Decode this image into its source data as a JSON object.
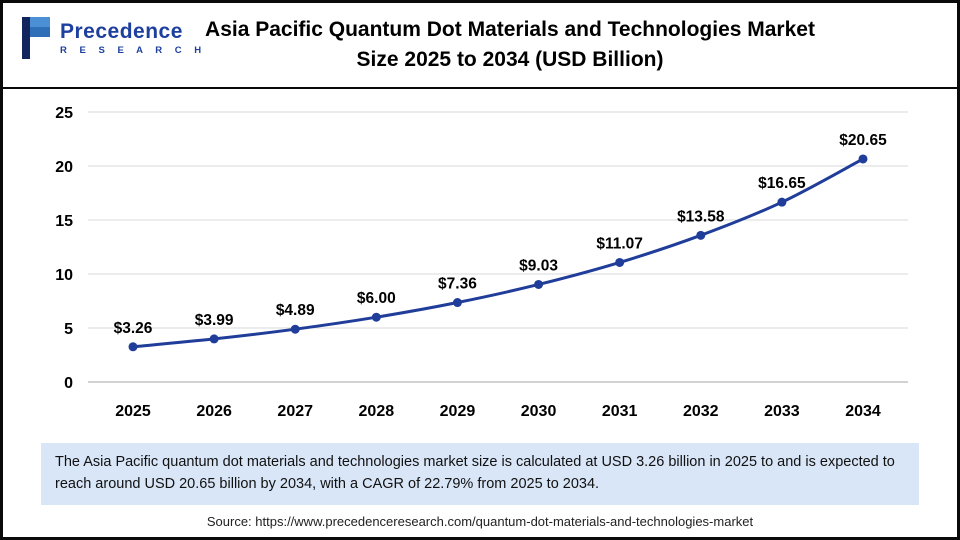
{
  "logo": {
    "name": "Precedence",
    "subtitle": "R E S E A R C H"
  },
  "header": {
    "title_line1": "Asia Pacific Quantum Dot Materials and Technologies Market",
    "title_line2": "Size 2025 to 2034 (USD Billion)"
  },
  "chart_data": {
    "type": "line",
    "title": "Asia Pacific Quantum Dot Materials and Technologies Market Size 2025 to 2034 (USD Billion)",
    "categories": [
      "2025",
      "2026",
      "2027",
      "2028",
      "2029",
      "2030",
      "2031",
      "2032",
      "2033",
      "2034"
    ],
    "values": [
      3.26,
      3.99,
      4.89,
      6.0,
      7.36,
      9.03,
      11.07,
      13.58,
      16.65,
      20.65
    ],
    "data_labels": [
      "$3.26",
      "$3.99",
      "$4.89",
      "$6.00",
      "$7.36",
      "$9.03",
      "$11.07",
      "$13.58",
      "$16.65",
      "$20.65"
    ],
    "ylim": [
      0,
      25
    ],
    "yticks": [
      0,
      5,
      10,
      15,
      20,
      25
    ],
    "xlabel": "",
    "ylabel": "",
    "grid": true,
    "legend": "none",
    "line_color": "#1f3d99",
    "grid_color": "#d9d9d9",
    "axis_color": "#a6a6a6"
  },
  "footer": {
    "note": "The Asia Pacific quantum dot materials and technologies market size is calculated at USD 3.26 billion in 2025 to and is expected to reach around USD 20.65 billion by 2034, with a CAGR of 22.79% from 2025 to 2034.",
    "source": "Source: https://www.precedenceresearch.com/quantum-dot-materials-and-technologies-market"
  }
}
